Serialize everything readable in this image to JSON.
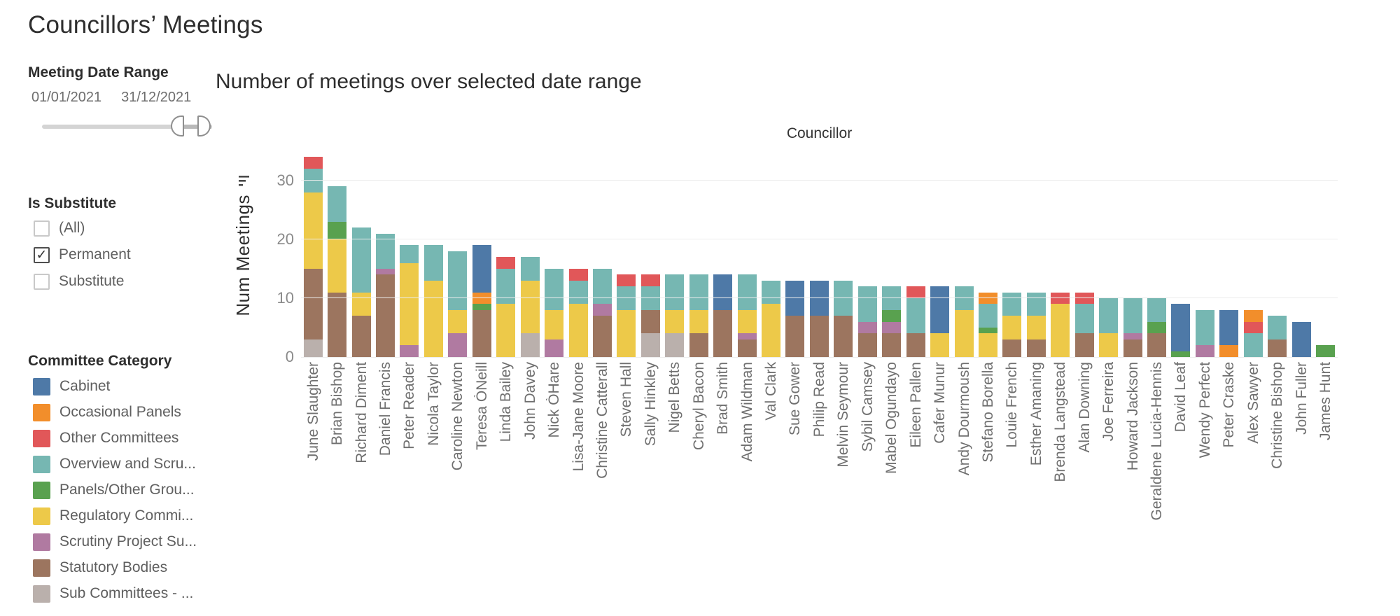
{
  "title": "Councillors’ Meetings",
  "filters": {
    "date_range": {
      "label": "Meeting Date Range",
      "start": "01/01/2021",
      "end": "31/12/2021"
    },
    "is_substitute": {
      "label": "Is Substitute",
      "options": [
        {
          "label": "(All)",
          "checked": false
        },
        {
          "label": "Permanent",
          "checked": true
        },
        {
          "label": "Substitute",
          "checked": false
        }
      ]
    }
  },
  "legend": {
    "label": "Committee Category",
    "items": [
      {
        "label": "Cabinet",
        "color": "#4e79a7"
      },
      {
        "label": "Occasional Panels",
        "color": "#f28e2b"
      },
      {
        "label": "Other Committees",
        "color": "#e15759"
      },
      {
        "label": "Overview and Scru...",
        "color": "#76b7b2"
      },
      {
        "label": "Panels/Other Grou...",
        "color": "#59a14f"
      },
      {
        "label": "Regulatory Commi...",
        "color": "#edc949"
      },
      {
        "label": "Scrutiny Project Su...",
        "color": "#b07aa1"
      },
      {
        "label": "Statutory Bodies",
        "color": "#9c755f"
      },
      {
        "label": "Sub Committees - ...",
        "color": "#bab0ac"
      }
    ]
  },
  "chart_data": {
    "type": "bar",
    "stacked": true,
    "title": "Number of meetings over selected date range",
    "xlabel": "Councillor",
    "ylabel": "Num Meetings",
    "ylim": [
      0,
      35
    ],
    "y_ticks": [
      0,
      10,
      20,
      30
    ],
    "grid": true,
    "legend_position": "left",
    "categories": [
      "June Slaughter",
      "Brian Bishop",
      "Richard Diment",
      "Daniel Francis",
      "Peter Reader",
      "Nicola Taylor",
      "Caroline Newton",
      "Teresa ÒNeill",
      "Linda Bailey",
      "John Davey",
      "Nick ÒHare",
      "Lisa-Jane Moore",
      "Christine Catterall",
      "Steven Hall",
      "Sally Hinkley",
      "Nigel Betts",
      "Cheryl Bacon",
      "Brad Smith",
      "Adam Wildman",
      "Val Clark",
      "Sue Gower",
      "Philip Read",
      "Melvin Seymour",
      "Sybil Camsey",
      "Mabel Ogundayo",
      "Eileen Pallen",
      "Cafer Munur",
      "Andy Dourmoush",
      "Stefano Borella",
      "Louie French",
      "Esther Amaning",
      "Brenda Langstead",
      "Alan Downing",
      "Joe Ferreira",
      "Howard Jackson",
      "Geraldene Lucia-Hennis",
      "David Leaf",
      "Wendy Perfect",
      "Peter Craske",
      "Alex Sawyer",
      "Christine Bishop",
      "John Fuller",
      "James Hunt"
    ],
    "series": [
      {
        "name": "Cabinet",
        "color": "#4e79a7",
        "values": [
          0,
          0,
          0,
          0,
          0,
          0,
          0,
          8,
          0,
          0,
          0,
          0,
          0,
          0,
          0,
          0,
          0,
          6,
          0,
          0,
          6,
          6,
          0,
          0,
          0,
          0,
          8,
          0,
          0,
          0,
          0,
          0,
          0,
          0,
          0,
          0,
          8,
          0,
          6,
          0,
          0,
          6,
          0
        ]
      },
      {
        "name": "Occasional Panels",
        "color": "#f28e2b",
        "values": [
          0,
          0,
          0,
          0,
          0,
          0,
          0,
          2,
          0,
          0,
          0,
          0,
          0,
          0,
          0,
          0,
          0,
          0,
          0,
          0,
          0,
          0,
          0,
          0,
          0,
          0,
          0,
          0,
          2,
          0,
          0,
          0,
          0,
          0,
          0,
          0,
          0,
          0,
          2,
          2,
          0,
          0,
          0
        ]
      },
      {
        "name": "Other Committees",
        "color": "#e15759",
        "values": [
          2,
          0,
          0,
          0,
          0,
          0,
          0,
          0,
          2,
          0,
          0,
          2,
          0,
          2,
          2,
          0,
          0,
          0,
          0,
          0,
          0,
          0,
          0,
          0,
          0,
          2,
          0,
          0,
          0,
          0,
          0,
          2,
          2,
          0,
          0,
          0,
          0,
          0,
          0,
          2,
          0,
          0,
          0
        ]
      },
      {
        "name": "Overview and Scru...",
        "color": "#76b7b2",
        "values": [
          4,
          6,
          11,
          6,
          3,
          6,
          10,
          0,
          6,
          4,
          7,
          4,
          6,
          4,
          4,
          6,
          6,
          0,
          6,
          4,
          0,
          0,
          6,
          6,
          4,
          6,
          0,
          4,
          4,
          4,
          4,
          0,
          5,
          6,
          6,
          4,
          0,
          6,
          0,
          4,
          4,
          0,
          0
        ]
      },
      {
        "name": "Panels/Other Grou...",
        "color": "#59a14f",
        "values": [
          0,
          3,
          0,
          0,
          0,
          0,
          0,
          1,
          0,
          0,
          0,
          0,
          0,
          0,
          0,
          0,
          0,
          0,
          0,
          0,
          0,
          0,
          0,
          0,
          2,
          0,
          0,
          0,
          1,
          0,
          0,
          0,
          0,
          0,
          0,
          2,
          1,
          0,
          0,
          0,
          0,
          0,
          2
        ]
      },
      {
        "name": "Regulatory Commi...",
        "color": "#edc949",
        "values": [
          13,
          9,
          4,
          0,
          14,
          13,
          4,
          0,
          9,
          9,
          5,
          9,
          0,
          8,
          0,
          4,
          4,
          0,
          4,
          9,
          0,
          0,
          0,
          0,
          0,
          0,
          4,
          8,
          4,
          4,
          4,
          9,
          0,
          4,
          0,
          0,
          0,
          0,
          0,
          0,
          0,
          0,
          0
        ]
      },
      {
        "name": "Scrutiny Project Su...",
        "color": "#b07aa1",
        "values": [
          0,
          0,
          0,
          1,
          2,
          0,
          4,
          0,
          0,
          0,
          3,
          0,
          2,
          0,
          0,
          0,
          0,
          0,
          1,
          0,
          0,
          0,
          0,
          2,
          2,
          0,
          0,
          0,
          0,
          0,
          0,
          0,
          0,
          0,
          1,
          0,
          0,
          2,
          0,
          0,
          0,
          0,
          0
        ]
      },
      {
        "name": "Statutory Bodies",
        "color": "#9c755f",
        "values": [
          12,
          11,
          7,
          14,
          0,
          0,
          0,
          8,
          0,
          0,
          0,
          0,
          7,
          0,
          4,
          0,
          4,
          8,
          3,
          0,
          7,
          7,
          7,
          4,
          4,
          4,
          0,
          0,
          0,
          3,
          3,
          0,
          4,
          0,
          3,
          4,
          0,
          0,
          0,
          0,
          3,
          0,
          0
        ]
      },
      {
        "name": "Sub Committees - ...",
        "color": "#bab0ac",
        "values": [
          3,
          0,
          0,
          0,
          0,
          0,
          0,
          0,
          0,
          4,
          0,
          0,
          0,
          0,
          4,
          4,
          0,
          0,
          0,
          0,
          0,
          0,
          0,
          0,
          0,
          0,
          0,
          0,
          0,
          0,
          0,
          0,
          0,
          0,
          0,
          0,
          0,
          0,
          0,
          0,
          0,
          0,
          0
        ]
      }
    ]
  }
}
